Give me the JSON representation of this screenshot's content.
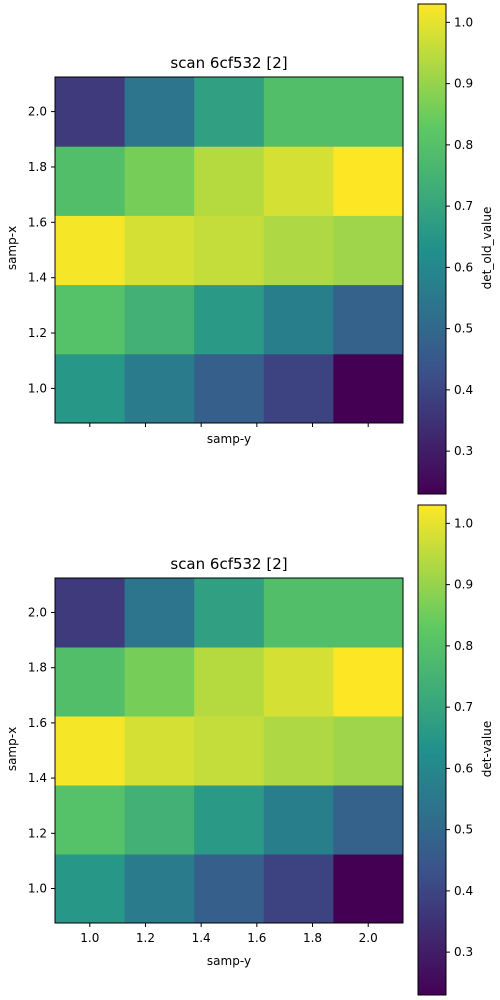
{
  "colormap": {
    "name": "viridis",
    "stops": [
      "#440154",
      "#3b528b",
      "#21918c",
      "#5ec962",
      "#fde725"
    ]
  },
  "chart_data": [
    {
      "type": "heatmap",
      "title": "scan 6cf532 [2]",
      "xlabel": "samp-y",
      "ylabel": "samp-x",
      "colorbar_label": "det_old_value",
      "x_tick_labels_visible": false,
      "x": [
        1.0,
        1.2,
        1.4,
        1.6,
        1.8,
        2.0
      ],
      "y": [
        1.0,
        1.25,
        1.5,
        1.75,
        2.0
      ],
      "xticks": [
        "1.0",
        "1.2",
        "1.4",
        "1.6",
        "1.8",
        "2.0"
      ],
      "yticks": [
        "1.0",
        "1.2",
        "1.4",
        "1.6",
        "1.8",
        "2.0"
      ],
      "xlim": [
        0.875,
        2.125
      ],
      "ylim": [
        0.875,
        2.125
      ],
      "cells_x": [
        1.0,
        1.25,
        1.5,
        1.75,
        2.0
      ],
      "cells_y": [
        1.0,
        1.25,
        1.5,
        1.75,
        2.0
      ],
      "values": [
        [
          0.65,
          0.56,
          0.47,
          0.39,
          0.23
        ],
        [
          0.8,
          0.74,
          0.66,
          0.57,
          0.48
        ],
        [
          1.02,
          0.98,
          0.96,
          0.93,
          0.91
        ],
        [
          0.79,
          0.86,
          0.94,
          0.98,
          1.03
        ],
        [
          0.37,
          0.54,
          0.68,
          0.79,
          0.79
        ]
      ],
      "vmin": 0.23,
      "vmax": 1.03,
      "colorbar_ticks": [
        0.3,
        0.4,
        0.5,
        0.6,
        0.7,
        0.8,
        0.9,
        1.0
      ],
      "colorbar_tick_labels": [
        "0.3",
        "0.4",
        "0.5",
        "0.6",
        "0.7",
        "0.8",
        "0.9",
        "1.0"
      ]
    },
    {
      "type": "heatmap",
      "title": "scan 6cf532 [2]",
      "xlabel": "samp-y",
      "ylabel": "samp-x",
      "colorbar_label": "det-value",
      "x_tick_labels_visible": true,
      "xticks": [
        "1.0",
        "1.2",
        "1.4",
        "1.6",
        "1.8",
        "2.0"
      ],
      "yticks": [
        "1.0",
        "1.2",
        "1.4",
        "1.6",
        "1.8",
        "2.0"
      ],
      "xlim": [
        0.875,
        2.125
      ],
      "ylim": [
        0.875,
        2.125
      ],
      "cells_x": [
        1.0,
        1.25,
        1.5,
        1.75,
        2.0
      ],
      "cells_y": [
        1.0,
        1.25,
        1.5,
        1.75,
        2.0
      ],
      "values": [
        [
          0.65,
          0.56,
          0.47,
          0.39,
          0.23
        ],
        [
          0.8,
          0.74,
          0.66,
          0.57,
          0.48
        ],
        [
          1.02,
          0.98,
          0.96,
          0.93,
          0.91
        ],
        [
          0.79,
          0.86,
          0.94,
          0.98,
          1.03
        ],
        [
          0.37,
          0.54,
          0.68,
          0.79,
          0.79
        ]
      ],
      "vmin": 0.23,
      "vmax": 1.03,
      "colorbar_ticks": [
        0.3,
        0.4,
        0.5,
        0.6,
        0.7,
        0.8,
        0.9,
        1.0
      ],
      "colorbar_tick_labels": [
        "0.3",
        "0.4",
        "0.5",
        "0.6",
        "0.7",
        "0.8",
        "0.9",
        "1.0"
      ]
    }
  ]
}
